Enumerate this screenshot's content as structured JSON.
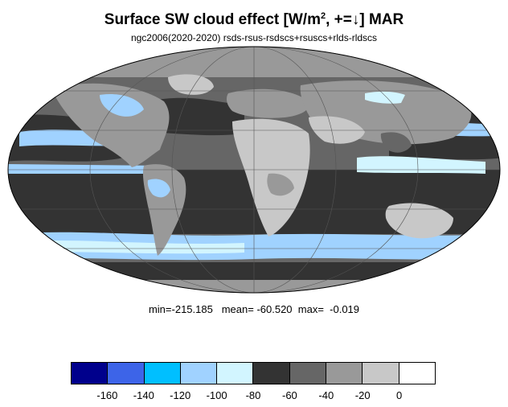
{
  "header": {
    "title_main": "Surface SW cloud effect [W/m",
    "title_sup": "2",
    "title_tail": ", +=↓]  MAR",
    "subtitle": "ngc2006(2020-2020)  rsds-rsus-rsdscs+rsuscs+rlds-rldscs"
  },
  "stats": {
    "min_label": "min=",
    "min": "-215.185",
    "mean_label": "mean=",
    "mean": "-60.520",
    "max_label": "max=",
    "max": "-0.019"
  },
  "colorbar": {
    "colors": [
      "#00008c",
      "#3d64e8",
      "#00bfff",
      "#a0d2ff",
      "#d2f5ff",
      "#333333",
      "#666666",
      "#999999",
      "#c8c8c8",
      "#ffffff"
    ],
    "tick_labels": [
      "-160",
      "-140",
      "-120",
      "-100",
      "-80",
      "-60",
      "-40",
      "-20",
      "0"
    ]
  },
  "map": {
    "projection": "mollweide",
    "field_colors": {
      "ocean_storm_track": "#333333",
      "moderate": "#666666",
      "weak": "#999999",
      "desert": "#c8c8c8",
      "light_blue": "#a0d2ff",
      "pale_blue": "#d2f5ff",
      "cyan": "#00bfff",
      "blue": "#3d64e8"
    }
  }
}
